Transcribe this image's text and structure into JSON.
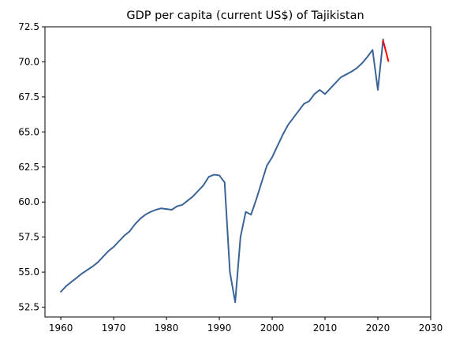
{
  "chart_data": {
    "type": "line",
    "title": "GDP per capita (current US$) of Tajikistan",
    "xlabel": "",
    "ylabel": "",
    "xlim": [
      1957,
      2030
    ],
    "ylim": [
      51.8,
      72.5
    ],
    "xticks": [
      1960,
      1970,
      1980,
      1990,
      2000,
      2010,
      2020,
      2030
    ],
    "yticks": [
      52.5,
      55.0,
      57.5,
      60.0,
      62.5,
      65.0,
      67.5,
      70.0,
      72.5
    ],
    "grid": false,
    "series": [
      {
        "color": "#3a6496",
        "x": [
          1960,
          1961,
          1962,
          1963,
          1964,
          1965,
          1966,
          1967,
          1968,
          1969,
          1970,
          1971,
          1972,
          1973,
          1974,
          1975,
          1976,
          1977,
          1978,
          1979,
          1980,
          1981,
          1982,
          1983,
          1984,
          1985,
          1986,
          1987,
          1988,
          1989,
          1990,
          1991,
          1992,
          1993,
          1994,
          1995,
          1996,
          1997,
          1998,
          1999,
          2000,
          2001,
          2002,
          2003,
          2004,
          2005,
          2006,
          2007,
          2008,
          2009,
          2010,
          2011,
          2012,
          2013,
          2014,
          2015,
          2016,
          2017,
          2018,
          2019,
          2020,
          2021
        ],
        "y": [
          53.6,
          54.0,
          54.3,
          54.6,
          54.9,
          55.15,
          55.4,
          55.7,
          56.1,
          56.5,
          56.8,
          57.2,
          57.6,
          57.9,
          58.4,
          58.8,
          59.1,
          59.3,
          59.45,
          59.55,
          59.5,
          59.45,
          59.7,
          59.8,
          60.1,
          60.4,
          60.8,
          61.2,
          61.8,
          61.95,
          61.9,
          61.4,
          55.0,
          52.85,
          57.5,
          59.3,
          59.1,
          60.2,
          61.4,
          62.6,
          63.2,
          64.0,
          64.8,
          65.5,
          66.0,
          66.5,
          67.0,
          67.2,
          67.7,
          68.0,
          67.7,
          68.1,
          68.5,
          68.9,
          69.1,
          69.3,
          69.55,
          69.9,
          70.35,
          70.85,
          68.0,
          71.6
        ]
      },
      {
        "color": "#ff0000",
        "x": [
          2021,
          2022
        ],
        "y": [
          71.5,
          70.05
        ]
      }
    ]
  }
}
